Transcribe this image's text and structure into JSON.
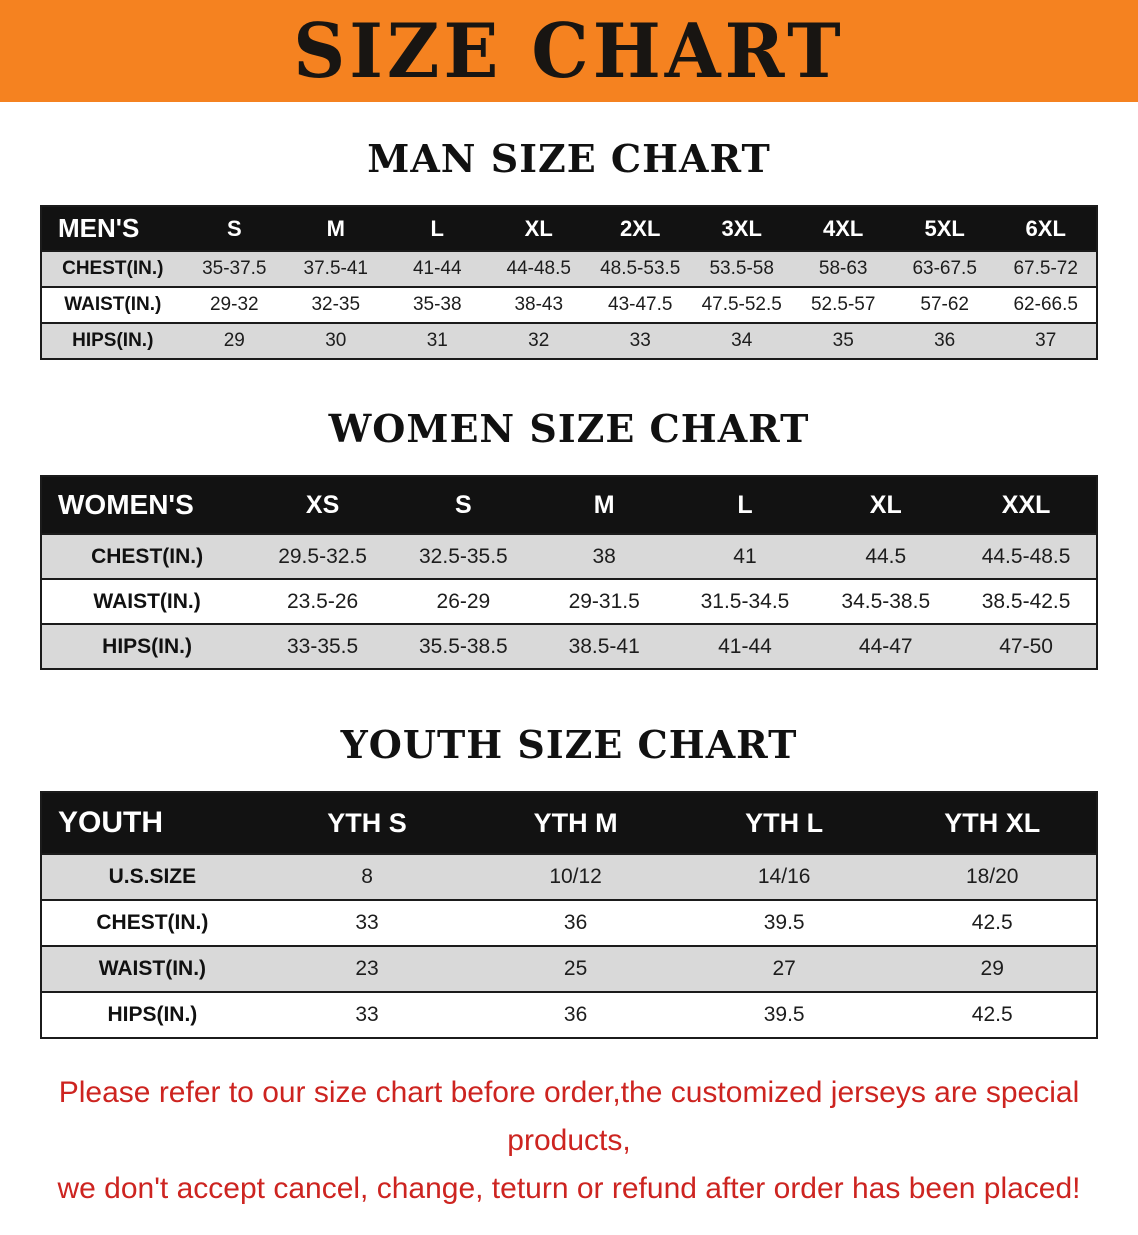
{
  "banner": {
    "title": "SIZE CHART",
    "bg_color": "#f58220",
    "text_color": "#181512"
  },
  "sections": [
    {
      "heading": "MAN SIZE CHART",
      "table": {
        "header_label": "MEN'S",
        "columns": [
          "S",
          "M",
          "L",
          "XL",
          "2XL",
          "3XL",
          "4XL",
          "5XL",
          "6XL"
        ],
        "rows": [
          {
            "label": "CHEST(IN.)",
            "values": [
              "35-37.5",
              "37.5-41",
              "41-44",
              "44-48.5",
              "48.5-53.5",
              "53.5-58",
              "58-63",
              "63-67.5",
              "67.5-72"
            ]
          },
          {
            "label": "WAIST(IN.)",
            "values": [
              "29-32",
              "32-35",
              "35-38",
              "38-43",
              "43-47.5",
              "47.5-52.5",
              "52.5-57",
              "57-62",
              "62-66.5"
            ]
          },
          {
            "label": "HIPS(IN.)",
            "values": [
              "29",
              "30",
              "31",
              "32",
              "33",
              "34",
              "35",
              "36",
              "37"
            ]
          }
        ]
      }
    },
    {
      "heading": "WOMEN SIZE CHART",
      "table": {
        "header_label": "WOMEN'S",
        "columns": [
          "XS",
          "S",
          "M",
          "L",
          "XL",
          "XXL"
        ],
        "rows": [
          {
            "label": "CHEST(IN.)",
            "values": [
              "29.5-32.5",
              "32.5-35.5",
              "38",
              "41",
              "44.5",
              "44.5-48.5"
            ]
          },
          {
            "label": "WAIST(IN.)",
            "values": [
              "23.5-26",
              "26-29",
              "29-31.5",
              "31.5-34.5",
              "34.5-38.5",
              "38.5-42.5"
            ]
          },
          {
            "label": "HIPS(IN.)",
            "values": [
              "33-35.5",
              "35.5-38.5",
              "38.5-41",
              "41-44",
              "44-47",
              "47-50"
            ]
          }
        ]
      }
    },
    {
      "heading": "YOUTH SIZE CHART",
      "table": {
        "header_label": "YOUTH",
        "columns": [
          "YTH S",
          "YTH M",
          "YTH L",
          "YTH XL"
        ],
        "rows": [
          {
            "label": "U.S.SIZE",
            "values": [
              "8",
              "10/12",
              "14/16",
              "18/20"
            ]
          },
          {
            "label": "CHEST(IN.)",
            "values": [
              "33",
              "36",
              "39.5",
              "42.5"
            ]
          },
          {
            "label": "WAIST(IN.)",
            "values": [
              "23",
              "25",
              "27",
              "29"
            ]
          },
          {
            "label": "HIPS(IN.)",
            "values": [
              "33",
              "36",
              "39.5",
              "42.5"
            ]
          }
        ]
      }
    }
  ],
  "footer": {
    "text_color": "#cd2420",
    "lines": [
      "Please refer to our size chart before order,the customized jerseys are special products,",
      "we don't accept cancel, change, teturn or refund after order has been placed!"
    ]
  }
}
